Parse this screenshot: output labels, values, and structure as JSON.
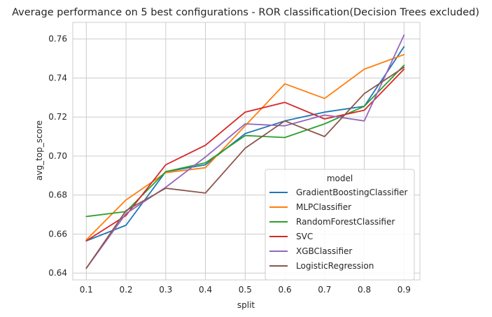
{
  "chart_data": {
    "type": "line",
    "title": "Average performance on 5 best configurations - ROR classification(Decision Trees excluded)",
    "xlabel": "split",
    "ylabel": "avg_top_score",
    "x": [
      0.1,
      0.2,
      0.3,
      0.4,
      0.5,
      0.6,
      0.7,
      0.8,
      0.9
    ],
    "x_tick_labels": [
      "0.1",
      "0.2",
      "0.3",
      "0.4",
      "0.5",
      "0.6",
      "0.7",
      "0.8",
      "0.9"
    ],
    "xlim": [
      0.066,
      0.94
    ],
    "ylim": [
      0.6365,
      0.7685
    ],
    "y_ticks": [
      0.64,
      0.66,
      0.68,
      0.7,
      0.72,
      0.74,
      0.76
    ],
    "y_tick_labels": [
      "0.64",
      "0.66",
      "0.68",
      "0.70",
      "0.72",
      "0.74",
      "0.76"
    ],
    "grid": true,
    "legend": {
      "title": "model",
      "placement": "lower-right"
    },
    "series": [
      {
        "name": "GradientBoostingClassifier",
        "color": "#1f77b4",
        "values": [
          0.6565,
          0.6645,
          0.692,
          0.6955,
          0.7115,
          0.718,
          0.7225,
          0.7255,
          0.756
        ]
      },
      {
        "name": "MLPClassifier",
        "color": "#ff7f0e",
        "values": [
          0.657,
          0.6775,
          0.6915,
          0.694,
          0.7155,
          0.737,
          0.7295,
          0.7445,
          0.752
        ]
      },
      {
        "name": "RandomForestClassifier",
        "color": "#2ca02c",
        "values": [
          0.669,
          0.6715,
          0.692,
          0.6965,
          0.7105,
          0.7095,
          0.7165,
          0.7255,
          0.7465
        ]
      },
      {
        "name": "SVC",
        "color": "#d62728",
        "values": [
          0.6565,
          0.6695,
          0.6955,
          0.7055,
          0.7225,
          0.7275,
          0.719,
          0.7235,
          0.7445
        ]
      },
      {
        "name": "XGBClassifier",
        "color": "#9467bd",
        "values": [
          0.6425,
          0.6705,
          0.684,
          0.6995,
          0.7165,
          0.7155,
          0.721,
          0.718,
          0.762
        ]
      },
      {
        "name": "LogisticRegression",
        "color": "#8c564b",
        "values": [
          0.6425,
          0.672,
          0.6835,
          0.681,
          0.704,
          0.718,
          0.71,
          0.732,
          0.7455
        ]
      }
    ]
  }
}
